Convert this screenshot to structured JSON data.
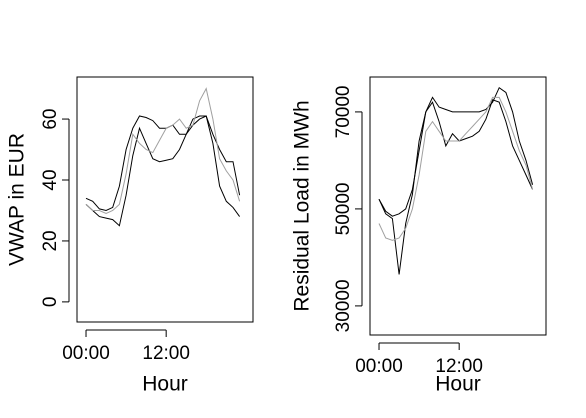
{
  "chart_data": [
    {
      "type": "line",
      "y_label": "VWAP in EUR",
      "x_label": "Hour",
      "x": [
        0,
        1,
        2,
        3,
        4,
        5,
        6,
        7,
        8,
        9,
        10,
        11,
        12,
        13,
        14,
        15,
        16,
        17,
        18,
        19,
        20,
        21,
        22,
        23
      ],
      "xlim": [
        -1.35,
        25
      ],
      "xticks": [
        {
          "value": 0,
          "label": "00:00"
        },
        {
          "value": 12,
          "label": "12:00"
        }
      ],
      "ylim": [
        -6.6,
        73.8
      ],
      "yticks": [
        0,
        20,
        40,
        60
      ],
      "series": [
        {
          "color": "#000000",
          "values": [
            34,
            33,
            30.5,
            30,
            31,
            38,
            50,
            57,
            61,
            60.5,
            59.5,
            57,
            57,
            58,
            55,
            55,
            58,
            60,
            61,
            55,
            50,
            46,
            46,
            35
          ]
        },
        {
          "color": "#000000",
          "values": [
            32,
            30,
            28,
            27.5,
            27,
            25,
            35,
            48,
            57,
            52,
            47,
            46,
            46.5,
            47,
            50,
            55,
            60,
            61,
            61,
            52,
            38,
            33,
            31,
            28
          ]
        },
        {
          "color": "#a0a0a0",
          "values": [
            32,
            30,
            30,
            29,
            30,
            32,
            42,
            55,
            52,
            50,
            49,
            53,
            57,
            58,
            60,
            57,
            58,
            66,
            70,
            60,
            47,
            43,
            40,
            33
          ]
        }
      ]
    },
    {
      "type": "line",
      "y_label": "Residual Load in MWh",
      "x_label": "Hour",
      "x": [
        0,
        1,
        2,
        3,
        4,
        5,
        6,
        7,
        8,
        9,
        10,
        11,
        12,
        13,
        14,
        15,
        16,
        17,
        18,
        19,
        20,
        21,
        22,
        23
      ],
      "xlim": [
        -1.35,
        25
      ],
      "xticks": [
        {
          "value": 0,
          "label": "00:00"
        },
        {
          "value": 12,
          "label": "12:00"
        }
      ],
      "ylim": [
        24000,
        77200
      ],
      "yticks": [
        30000,
        50000,
        70000
      ],
      "series": [
        {
          "color": "#000000",
          "values": [
            52000,
            49500,
            48500,
            49000,
            50000,
            54000,
            62000,
            70000,
            73000,
            71000,
            70500,
            70000,
            70000,
            70000,
            70000,
            70000,
            70500,
            72000,
            75000,
            74000,
            70000,
            64000,
            60000,
            55000
          ]
        },
        {
          "color": "#000000",
          "values": [
            52000,
            49000,
            48000,
            36500,
            47000,
            53000,
            64000,
            70000,
            72000,
            68000,
            63000,
            65500,
            64000,
            64500,
            65000,
            66000,
            68500,
            72500,
            72000,
            68000,
            63000,
            60000,
            57000,
            54000
          ]
        },
        {
          "color": "#a0a0a0",
          "values": [
            47000,
            44000,
            43500,
            44000,
            46000,
            50000,
            57000,
            66000,
            68000,
            66000,
            64000,
            64000,
            64000,
            65500,
            67000,
            68500,
            70000,
            73000,
            73000,
            70000,
            66000,
            62000,
            59000,
            54000
          ]
        }
      ]
    }
  ]
}
